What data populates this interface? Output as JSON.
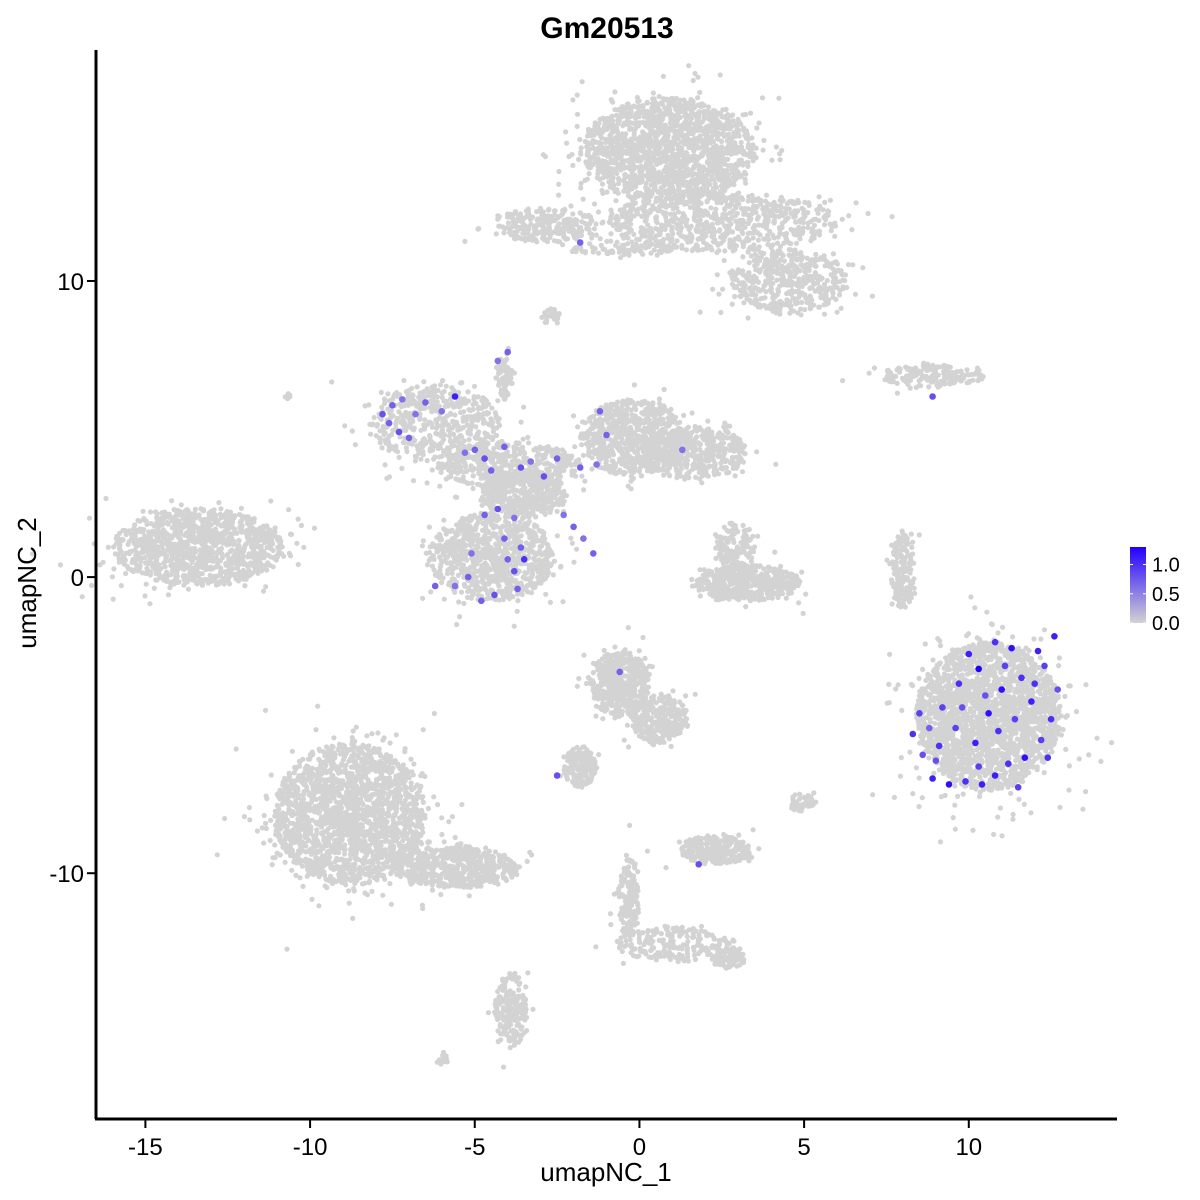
{
  "chart_data": {
    "type": "scatter",
    "title": "Gm20513",
    "xlabel": "umapNC_1",
    "ylabel": "umapNC_2",
    "xlim": [
      -16.5,
      14.5
    ],
    "ylim": [
      -18.3,
      17.8
    ],
    "x_ticks": [
      -15,
      -10,
      -5,
      0,
      5,
      10
    ],
    "x_tick_labels": [
      "-15",
      "-10",
      "-5",
      "0",
      "5",
      "10"
    ],
    "y_ticks": [
      10,
      0,
      -10
    ],
    "y_tick_labels": [
      "10",
      "0",
      "-10"
    ],
    "grid": false,
    "legend": {
      "placement": "right",
      "type": "colorbar",
      "ticks": [
        1.0,
        0.5,
        0.0
      ],
      "tick_labels": [
        "1.0",
        "0.5",
        "0.0"
      ],
      "range": [
        0,
        1.3
      ],
      "low_color": "#d3d3d3",
      "high_color": "#2200ff"
    },
    "background_color": "#d3d3d3",
    "clusters": [
      {
        "cx": 0.9,
        "cy": 14.4,
        "rx": 2.6,
        "ry": 1.8,
        "n": 1600
      },
      {
        "cx": 2.5,
        "cy": 12.0,
        "rx": 3.5,
        "ry": 1.0,
        "n": 700
      },
      {
        "cx": 4.5,
        "cy": 10.0,
        "rx": 1.8,
        "ry": 1.1,
        "n": 450
      },
      {
        "cx": -2.8,
        "cy": 11.9,
        "rx": 1.5,
        "ry": 0.6,
        "n": 250
      },
      {
        "cx": -0.6,
        "cy": 11.1,
        "rx": 1.6,
        "ry": 0.25,
        "n": 80
      },
      {
        "cx": -2.7,
        "cy": 8.8,
        "rx": 0.3,
        "ry": 0.3,
        "n": 25
      },
      {
        "cx": 8.9,
        "cy": 6.8,
        "rx": 1.6,
        "ry": 0.35,
        "n": 180
      },
      {
        "cx": -13.4,
        "cy": 1.0,
        "rx": 2.6,
        "ry": 1.3,
        "n": 1100
      },
      {
        "cx": -6.2,
        "cy": 5.2,
        "rx": 2.0,
        "ry": 1.3,
        "n": 500
      },
      {
        "cx": -4.0,
        "cy": 3.8,
        "rx": 2.2,
        "ry": 0.8,
        "n": 450
      },
      {
        "cx": -3.5,
        "cy": 2.8,
        "rx": 1.3,
        "ry": 0.8,
        "n": 400
      },
      {
        "cx": -4.5,
        "cy": 0.7,
        "rx": 1.9,
        "ry": 1.5,
        "n": 900
      },
      {
        "cx": -0.2,
        "cy": 4.7,
        "rx": 1.6,
        "ry": 1.3,
        "n": 650
      },
      {
        "cx": 1.7,
        "cy": 4.2,
        "rx": 1.6,
        "ry": 0.9,
        "n": 450
      },
      {
        "cx": -4.1,
        "cy": 6.8,
        "rx": 0.25,
        "ry": 0.8,
        "n": 70
      },
      {
        "cx": 3.3,
        "cy": -0.2,
        "rx": 1.6,
        "ry": 0.6,
        "n": 500
      },
      {
        "cx": 2.9,
        "cy": 1.0,
        "rx": 0.6,
        "ry": 0.9,
        "n": 150
      },
      {
        "cx": 8.0,
        "cy": 0.2,
        "rx": 0.35,
        "ry": 1.3,
        "n": 180
      },
      {
        "cx": 10.6,
        "cy": -4.7,
        "rx": 2.2,
        "ry": 2.5,
        "n": 2200
      },
      {
        "cx": -0.6,
        "cy": -3.6,
        "rx": 0.9,
        "ry": 1.1,
        "n": 500
      },
      {
        "cx": 0.6,
        "cy": -4.8,
        "rx": 0.9,
        "ry": 0.8,
        "n": 300
      },
      {
        "cx": -1.8,
        "cy": -6.4,
        "rx": 0.5,
        "ry": 0.7,
        "n": 150
      },
      {
        "cx": 2.3,
        "cy": -9.2,
        "rx": 1.1,
        "ry": 0.5,
        "n": 250
      },
      {
        "cx": 4.9,
        "cy": -7.6,
        "rx": 0.4,
        "ry": 0.3,
        "n": 40
      },
      {
        "cx": -8.8,
        "cy": -8.0,
        "rx": 2.3,
        "ry": 2.4,
        "n": 2000
      },
      {
        "cx": -5.6,
        "cy": -9.8,
        "rx": 1.9,
        "ry": 0.7,
        "n": 550
      },
      {
        "cx": -3.9,
        "cy": -14.6,
        "rx": 0.5,
        "ry": 1.3,
        "n": 200
      },
      {
        "cx": -6.0,
        "cy": -16.3,
        "rx": 0.2,
        "ry": 0.2,
        "n": 15
      },
      {
        "cx": 1.1,
        "cy": -12.4,
        "rx": 1.8,
        "ry": 0.6,
        "n": 200
      },
      {
        "cx": -0.3,
        "cy": -10.8,
        "rx": 0.35,
        "ry": 1.3,
        "n": 150
      },
      {
        "cx": 2.7,
        "cy": -12.9,
        "rx": 0.5,
        "ry": 0.35,
        "n": 80
      },
      {
        "cx": -10.7,
        "cy": 6.1,
        "rx": 0.1,
        "ry": 0.1,
        "n": 5
      }
    ],
    "expressing_points": [
      {
        "x": -7.5,
        "y": 5.8,
        "v": 0.7
      },
      {
        "x": -7.8,
        "y": 5.5,
        "v": 0.8
      },
      {
        "x": -7.2,
        "y": 6.0,
        "v": 0.6
      },
      {
        "x": -7.0,
        "y": 4.7,
        "v": 0.7
      },
      {
        "x": -7.3,
        "y": 4.9,
        "v": 0.8
      },
      {
        "x": -6.8,
        "y": 5.5,
        "v": 0.6
      },
      {
        "x": -6.5,
        "y": 5.9,
        "v": 0.7
      },
      {
        "x": -5.6,
        "y": 6.1,
        "v": 1.1
      },
      {
        "x": -7.6,
        "y": 5.2,
        "v": 0.7
      },
      {
        "x": -6.0,
        "y": 5.6,
        "v": 0.6
      },
      {
        "x": -5.0,
        "y": 4.3,
        "v": 0.7
      },
      {
        "x": -4.7,
        "y": 4.0,
        "v": 0.8
      },
      {
        "x": -4.5,
        "y": 3.6,
        "v": 0.7
      },
      {
        "x": -5.3,
        "y": 4.2,
        "v": 0.6
      },
      {
        "x": -4.1,
        "y": 4.4,
        "v": 0.7
      },
      {
        "x": -3.6,
        "y": 3.7,
        "v": 0.8
      },
      {
        "x": -3.3,
        "y": 3.9,
        "v": 0.6
      },
      {
        "x": -2.5,
        "y": 4.0,
        "v": 0.7
      },
      {
        "x": -1.8,
        "y": 3.7,
        "v": 0.7
      },
      {
        "x": -1.3,
        "y": 3.8,
        "v": 0.6
      },
      {
        "x": -1.0,
        "y": 4.8,
        "v": 0.7
      },
      {
        "x": -1.2,
        "y": 5.6,
        "v": 0.7
      },
      {
        "x": 1.3,
        "y": 4.3,
        "v": 0.6
      },
      {
        "x": -2.9,
        "y": 3.4,
        "v": 0.8
      },
      {
        "x": -4.0,
        "y": 7.6,
        "v": 0.7
      },
      {
        "x": -4.3,
        "y": 7.3,
        "v": 0.6
      },
      {
        "x": -2.0,
        "y": 1.7,
        "v": 0.7
      },
      {
        "x": -1.7,
        "y": 1.3,
        "v": 0.6
      },
      {
        "x": -1.4,
        "y": 0.8,
        "v": 0.7
      },
      {
        "x": -2.3,
        "y": 2.1,
        "v": 0.6
      },
      {
        "x": -3.5,
        "y": 0.6,
        "v": 1.0
      },
      {
        "x": -3.8,
        "y": 0.2,
        "v": 0.8
      },
      {
        "x": -4.0,
        "y": 0.6,
        "v": 0.7
      },
      {
        "x": -3.7,
        "y": -0.4,
        "v": 0.7
      },
      {
        "x": -4.4,
        "y": -0.6,
        "v": 0.8
      },
      {
        "x": -4.8,
        "y": -0.8,
        "v": 0.7
      },
      {
        "x": -5.2,
        "y": 0.0,
        "v": 0.7
      },
      {
        "x": -5.6,
        "y": -0.3,
        "v": 0.6
      },
      {
        "x": -6.2,
        "y": -0.3,
        "v": 0.7
      },
      {
        "x": -4.1,
        "y": 1.3,
        "v": 0.7
      },
      {
        "x": -4.3,
        "y": 2.3,
        "v": 0.8
      },
      {
        "x": -3.8,
        "y": 2.0,
        "v": 0.6
      },
      {
        "x": -4.7,
        "y": 2.1,
        "v": 0.7
      },
      {
        "x": -5.1,
        "y": 0.8,
        "v": 0.6
      },
      {
        "x": -3.6,
        "y": 1.0,
        "v": 0.7
      },
      {
        "x": -1.8,
        "y": 11.3,
        "v": 0.7
      },
      {
        "x": 8.9,
        "y": 6.1,
        "v": 0.8
      },
      {
        "x": -0.6,
        "y": -3.2,
        "v": 0.7
      },
      {
        "x": -2.5,
        "y": -6.7,
        "v": 0.8
      },
      {
        "x": 1.8,
        "y": -9.7,
        "v": 0.8
      },
      {
        "x": 10.3,
        "y": -3.1,
        "v": 1.3
      },
      {
        "x": 10.0,
        "y": -2.6,
        "v": 1.1
      },
      {
        "x": 10.8,
        "y": -2.2,
        "v": 1.0
      },
      {
        "x": 11.3,
        "y": -2.4,
        "v": 1.2
      },
      {
        "x": 12.1,
        "y": -2.5,
        "v": 1.1
      },
      {
        "x": 12.6,
        "y": -2.0,
        "v": 1.1
      },
      {
        "x": 12.3,
        "y": -3.0,
        "v": 0.9
      },
      {
        "x": 11.6,
        "y": -3.4,
        "v": 1.0
      },
      {
        "x": 11.0,
        "y": -3.8,
        "v": 1.2
      },
      {
        "x": 10.5,
        "y": -4.0,
        "v": 0.8
      },
      {
        "x": 9.7,
        "y": -3.6,
        "v": 1.0
      },
      {
        "x": 9.2,
        "y": -4.4,
        "v": 0.9
      },
      {
        "x": 8.8,
        "y": -5.1,
        "v": 0.7
      },
      {
        "x": 8.3,
        "y": -5.3,
        "v": 1.0
      },
      {
        "x": 8.6,
        "y": -6.0,
        "v": 0.8
      },
      {
        "x": 8.9,
        "y": -6.8,
        "v": 1.1
      },
      {
        "x": 9.4,
        "y": -7.0,
        "v": 1.2
      },
      {
        "x": 9.9,
        "y": -6.9,
        "v": 1.0
      },
      {
        "x": 10.3,
        "y": -6.4,
        "v": 0.9
      },
      {
        "x": 10.8,
        "y": -6.7,
        "v": 1.1
      },
      {
        "x": 11.2,
        "y": -6.3,
        "v": 1.0
      },
      {
        "x": 11.7,
        "y": -6.1,
        "v": 1.2
      },
      {
        "x": 12.2,
        "y": -5.5,
        "v": 0.9
      },
      {
        "x": 12.5,
        "y": -4.8,
        "v": 1.0
      },
      {
        "x": 12.7,
        "y": -3.8,
        "v": 0.8
      },
      {
        "x": 11.9,
        "y": -4.2,
        "v": 1.1
      },
      {
        "x": 11.4,
        "y": -4.8,
        "v": 0.9
      },
      {
        "x": 10.9,
        "y": -5.2,
        "v": 1.0
      },
      {
        "x": 10.2,
        "y": -5.6,
        "v": 1.1
      },
      {
        "x": 9.6,
        "y": -5.1,
        "v": 0.9
      },
      {
        "x": 9.1,
        "y": -5.7,
        "v": 1.0
      },
      {
        "x": 9.8,
        "y": -4.4,
        "v": 0.8
      },
      {
        "x": 10.6,
        "y": -4.6,
        "v": 1.2
      },
      {
        "x": 11.1,
        "y": -3.0,
        "v": 0.9
      },
      {
        "x": 12.0,
        "y": -3.6,
        "v": 1.0
      },
      {
        "x": 10.4,
        "y": -7.0,
        "v": 1.1
      },
      {
        "x": 11.5,
        "y": -7.1,
        "v": 0.9
      },
      {
        "x": 9.0,
        "y": -6.2,
        "v": 0.8
      },
      {
        "x": 8.5,
        "y": -4.6,
        "v": 0.9
      },
      {
        "x": 12.4,
        "y": -6.1,
        "v": 1.0
      }
    ]
  }
}
